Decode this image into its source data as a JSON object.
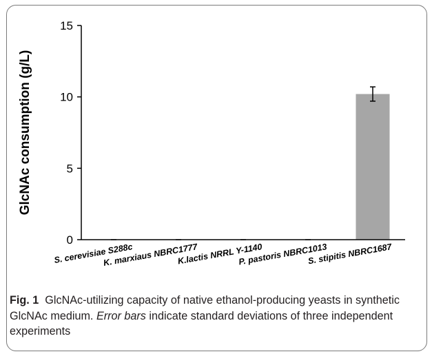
{
  "chart_data": {
    "type": "bar",
    "categories": [
      "S. cerevisiae S288c",
      "K. marxiaus NBRC1777",
      "K.lactis NRRL Y-1140",
      "P. pastoris NBRC1013",
      "S. stipitis NBRC1687"
    ],
    "values": [
      0,
      0,
      0,
      0,
      10.2
    ],
    "error": [
      0,
      0,
      0,
      0,
      0.5
    ],
    "ylabel": "GlcNAc consumption (g/L)",
    "xlabel": "",
    "ylim": [
      0,
      15
    ],
    "yticks": [
      0,
      5,
      10,
      15
    ],
    "bar_color": "#a6a6a6",
    "grid": false
  },
  "caption": {
    "fig_label": "Fig. 1",
    "text_before": "GlcNAc-utilizing capacity of native ethanol-producing yeasts in synthetic GlcNAc medium.",
    "italic": "Error bars",
    "text_after": "indicate standard deviations of three independent experiments"
  }
}
